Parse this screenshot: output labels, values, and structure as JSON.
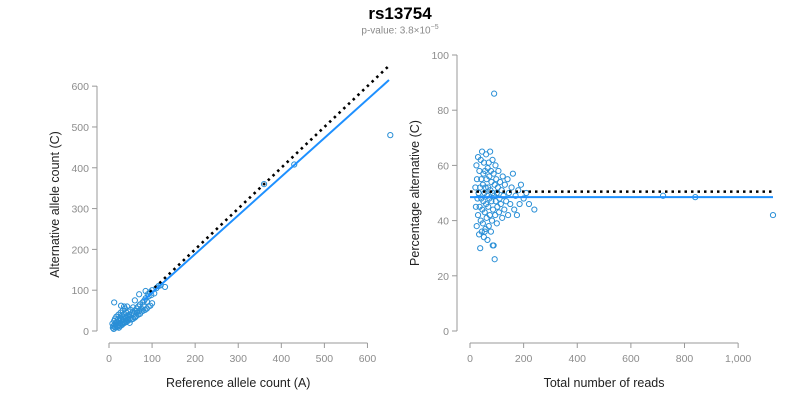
{
  "title": "rs13754",
  "subtitle": {
    "prefix": "p-value: 3.8×10",
    "exponent": "−5"
  },
  "colors": {
    "points": "#2a8fd6",
    "fit_line": "#1e90ff",
    "reference_line": "#000000",
    "tick_text": "#8c8c8c",
    "axis": "#999999"
  },
  "chart_data": [
    {
      "type": "scatter",
      "xlabel": "Reference allele count (A)",
      "ylabel": "Alternative allele count (C)",
      "xlim": [
        0,
        650
      ],
      "ylim": [
        0,
        620
      ],
      "xticks": [
        0,
        100,
        200,
        300,
        400,
        500,
        600
      ],
      "yticks": [
        0,
        100,
        200,
        300,
        400,
        500,
        600
      ],
      "xtick_labels": [
        "0",
        "100",
        "200",
        "300",
        "400",
        "500",
        "600"
      ],
      "ytick_labels": [
        "0",
        "100",
        "200",
        "300",
        "400",
        "500",
        "600"
      ],
      "fit_line": {
        "style": "solid",
        "x": [
          80,
          650
        ],
        "y": [
          75,
          615
        ]
      },
      "reference_line": {
        "style": "dotted",
        "x": [
          95,
          650
        ],
        "y": [
          95,
          650
        ]
      },
      "points": [
        [
          8,
          18
        ],
        [
          10,
          12
        ],
        [
          12,
          25
        ],
        [
          13,
          15
        ],
        [
          14,
          30
        ],
        [
          15,
          8
        ],
        [
          16,
          20
        ],
        [
          17,
          35
        ],
        [
          18,
          22
        ],
        [
          19,
          12
        ],
        [
          20,
          28
        ],
        [
          21,
          18
        ],
        [
          22,
          40
        ],
        [
          23,
          25
        ],
        [
          24,
          15
        ],
        [
          25,
          32
        ],
        [
          26,
          20
        ],
        [
          27,
          45
        ],
        [
          28,
          28
        ],
        [
          29,
          18
        ],
        [
          30,
          38
        ],
        [
          31,
          25
        ],
        [
          32,
          50
        ],
        [
          33,
          30
        ],
        [
          34,
          22
        ],
        [
          35,
          42
        ],
        [
          36,
          28
        ],
        [
          37,
          55
        ],
        [
          38,
          35
        ],
        [
          39,
          25
        ],
        [
          40,
          45
        ],
        [
          41,
          32
        ],
        [
          42,
          60
        ],
        [
          43,
          38
        ],
        [
          44,
          28
        ],
        [
          45,
          48
        ],
        [
          46,
          35
        ],
        [
          47,
          40
        ],
        [
          48,
          30
        ],
        [
          50,
          52
        ],
        [
          52,
          38
        ],
        [
          54,
          45
        ],
        [
          55,
          30
        ],
        [
          56,
          58
        ],
        [
          58,
          42
        ],
        [
          60,
          50
        ],
        [
          62,
          35
        ],
        [
          64,
          55
        ],
        [
          65,
          45
        ],
        [
          68,
          60
        ],
        [
          70,
          50
        ],
        [
          72,
          65
        ],
        [
          75,
          55
        ],
        [
          78,
          70
        ],
        [
          80,
          62
        ],
        [
          82,
          75
        ],
        [
          85,
          80
        ],
        [
          88,
          72
        ],
        [
          90,
          90
        ],
        [
          92,
          85
        ],
        [
          95,
          95
        ],
        [
          98,
          88
        ],
        [
          100,
          100
        ],
        [
          105,
          92
        ],
        [
          110,
          105
        ],
        [
          115,
          110
        ],
        [
          120,
          112
        ],
        [
          130,
          108
        ],
        [
          12,
          70
        ],
        [
          28,
          62
        ],
        [
          35,
          60
        ],
        [
          60,
          75
        ],
        [
          70,
          90
        ],
        [
          85,
          98
        ],
        [
          9,
          8
        ],
        [
          11,
          5
        ],
        [
          14,
          10
        ],
        [
          16,
          14
        ],
        [
          20,
          10
        ],
        [
          23,
          8
        ],
        [
          26,
          12
        ],
        [
          30,
          15
        ],
        [
          33,
          18
        ],
        [
          36,
          20
        ],
        [
          40,
          22
        ],
        [
          44,
          25
        ],
        [
          48,
          20
        ],
        [
          52,
          28
        ],
        [
          56,
          30
        ],
        [
          60,
          33
        ],
        [
          64,
          38
        ],
        [
          68,
          40
        ],
        [
          72,
          42
        ],
        [
          76,
          48
        ],
        [
          80,
          50
        ],
        [
          84,
          52
        ],
        [
          88,
          55
        ],
        [
          92,
          60
        ],
        [
          96,
          62
        ],
        [
          100,
          68
        ],
        [
          430,
          408
        ],
        [
          360,
          360
        ],
        [
          653,
          480
        ]
      ]
    },
    {
      "type": "scatter",
      "xlabel": "Total number of reads",
      "ylabel": "Percentage alternative (C)",
      "xlim": [
        0,
        1130
      ],
      "ylim": [
        0,
        100
      ],
      "xticks": [
        0,
        200,
        400,
        600,
        800,
        1000
      ],
      "yticks": [
        0,
        20,
        40,
        60,
        80,
        100
      ],
      "xtick_labels": [
        "0",
        "200",
        "400",
        "600",
        "800",
        "1,000"
      ],
      "ytick_labels": [
        "0",
        "20",
        "40",
        "60",
        "80",
        "100"
      ],
      "fit_line": {
        "style": "solid",
        "x": [
          0,
          1130
        ],
        "y": [
          48.5,
          48.5
        ]
      },
      "reference_line": {
        "style": "dotted",
        "x": [
          0,
          1130
        ],
        "y": [
          50.5,
          50.5
        ]
      },
      "points": [
        [
          20,
          52
        ],
        [
          22,
          45
        ],
        [
          24,
          60
        ],
        [
          25,
          38
        ],
        [
          26,
          55
        ],
        [
          28,
          48
        ],
        [
          30,
          42
        ],
        [
          30,
          63
        ],
        [
          32,
          50
        ],
        [
          34,
          35
        ],
        [
          35,
          58
        ],
        [
          36,
          45
        ],
        [
          38,
          52
        ],
        [
          38,
          30
        ],
        [
          40,
          62
        ],
        [
          40,
          40
        ],
        [
          42,
          48
        ],
        [
          42,
          55
        ],
        [
          44,
          36
        ],
        [
          45,
          65
        ],
        [
          46,
          44
        ],
        [
          48,
          53
        ],
        [
          48,
          39
        ],
        [
          50,
          57
        ],
        [
          50,
          47
        ],
        [
          52,
          34
        ],
        [
          52,
          61
        ],
        [
          54,
          50
        ],
        [
          55,
          43
        ],
        [
          56,
          58
        ],
        [
          58,
          37
        ],
        [
          58,
          52
        ],
        [
          60,
          46
        ],
        [
          60,
          64
        ],
        [
          62,
          41
        ],
        [
          62,
          55
        ],
        [
          64,
          49
        ],
        [
          65,
          33
        ],
        [
          66,
          59
        ],
        [
          68,
          45
        ],
        [
          68,
          52
        ],
        [
          70,
          38
        ],
        [
          70,
          61
        ],
        [
          72,
          48
        ],
        [
          72,
          56
        ],
        [
          74,
          42
        ],
        [
          75,
          65
        ],
        [
          76,
          51
        ],
        [
          78,
          36
        ],
        [
          78,
          58
        ],
        [
          80,
          47
        ],
        [
          80,
          54
        ],
        [
          82,
          40
        ],
        [
          84,
          62
        ],
        [
          85,
          50
        ],
        [
          86,
          44
        ],
        [
          88,
          57
        ],
        [
          88,
          31
        ],
        [
          90,
          49
        ],
        [
          90,
          86
        ],
        [
          92,
          53
        ],
        [
          94,
          42
        ],
        [
          95,
          60
        ],
        [
          96,
          47
        ],
        [
          98,
          55
        ],
        [
          100,
          39
        ],
        [
          100,
          50
        ],
        [
          102,
          45
        ],
        [
          104,
          52
        ],
        [
          106,
          58
        ],
        [
          108,
          43
        ],
        [
          110,
          48
        ],
        [
          112,
          54
        ],
        [
          115,
          46
        ],
        [
          118,
          51
        ],
        [
          120,
          41
        ],
        [
          122,
          56
        ],
        [
          125,
          49
        ],
        [
          128,
          44
        ],
        [
          130,
          53
        ],
        [
          135,
          47
        ],
        [
          140,
          55
        ],
        [
          142,
          42
        ],
        [
          145,
          50
        ],
        [
          150,
          46
        ],
        [
          155,
          52
        ],
        [
          160,
          57
        ],
        [
          165,
          44
        ],
        [
          170,
          49
        ],
        [
          175,
          42
        ],
        [
          180,
          51
        ],
        [
          185,
          46
        ],
        [
          190,
          53
        ],
        [
          200,
          48
        ],
        [
          210,
          50
        ],
        [
          220,
          46
        ],
        [
          240,
          44
        ],
        [
          92,
          26
        ],
        [
          85,
          31
        ],
        [
          55,
          36
        ],
        [
          720,
          49
        ],
        [
          840,
          48.5
        ],
        [
          1130,
          42
        ]
      ]
    }
  ]
}
